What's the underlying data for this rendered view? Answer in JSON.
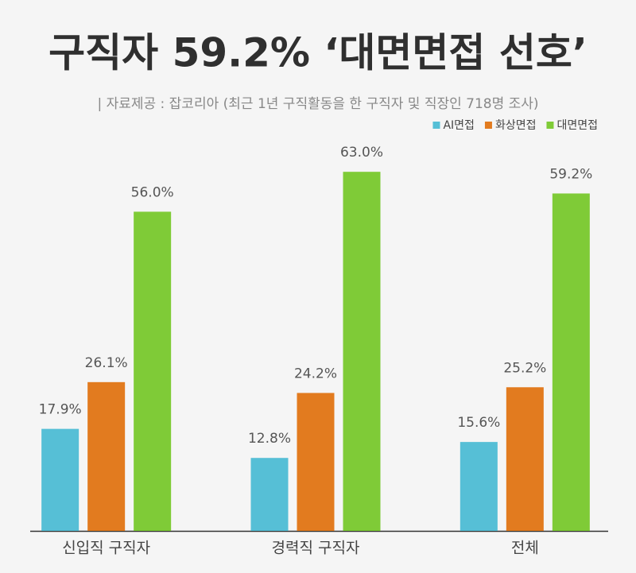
{
  "chart_data": {
    "type": "bar",
    "title": "구직자 59.2% ‘대면면접 선호’",
    "subtitle": "| 자료제공 : 잡코리아 (최근 1년 구직활동을 한 구직자 및 직장인 718명 조사)",
    "categories": [
      "신입직 구직자",
      "경력직 구직자",
      "전체"
    ],
    "series": [
      {
        "name": "AI면접",
        "color": "#56bfd6",
        "values": [
          17.9,
          12.8,
          15.6
        ],
        "value_labels": [
          "17.9%",
          "12.8%",
          "15.6%"
        ]
      },
      {
        "name": "화상면접",
        "color": "#e27b1f",
        "values": [
          26.1,
          24.2,
          25.2
        ],
        "value_labels": [
          "26.1%",
          "24.2%",
          "25.2%"
        ]
      },
      {
        "name": "대면면접",
        "color": "#7fcb37",
        "values": [
          56.0,
          63.0,
          59.2
        ],
        "value_labels": [
          "56.0%",
          "63.0%",
          "59.2%"
        ]
      }
    ],
    "ylim": [
      0,
      70
    ],
    "legend": "top-right"
  }
}
